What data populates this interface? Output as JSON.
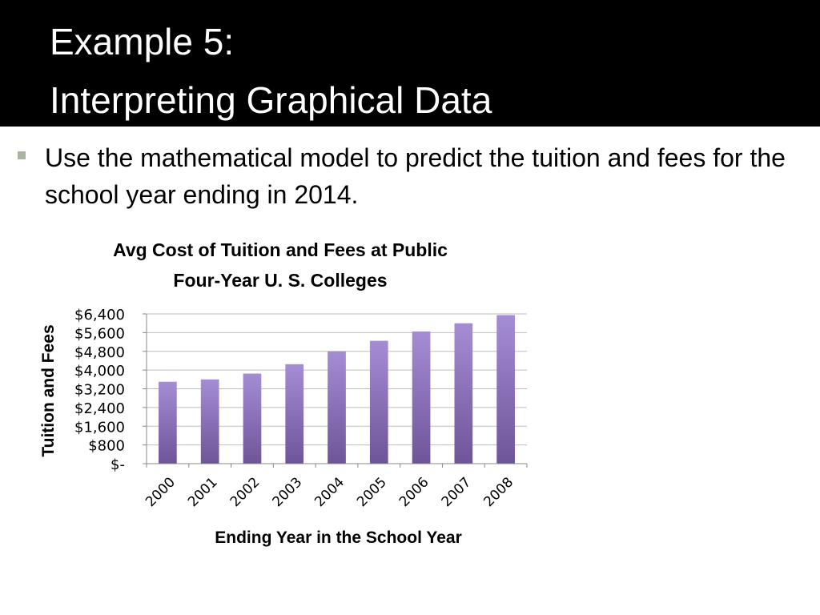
{
  "slide": {
    "title_line1": "Example 5:",
    "title_line2": "Interpreting Graphical Data",
    "bullet": "Use the mathematical model to predict the tuition and fees for the school year ending in 2014."
  },
  "chart_data": {
    "type": "bar",
    "title_line1": "Avg Cost of Tuition and Fees at Public",
    "title_line2": "Four-Year U. S. Colleges",
    "xlabel": "Ending Year in the School Year",
    "ylabel": "Tuition and Fees",
    "categories": [
      "2000",
      "2001",
      "2002",
      "2003",
      "2004",
      "2005",
      "2006",
      "2007",
      "2008"
    ],
    "values": [
      3500,
      3600,
      3850,
      4250,
      4800,
      5250,
      5650,
      6000,
      6350
    ],
    "ylim": [
      0,
      6400
    ],
    "y_ticks": [
      0,
      800,
      1600,
      2400,
      3200,
      4000,
      4800,
      5600,
      6400
    ],
    "y_tick_labels": [
      "$-",
      "$800",
      "$1,600",
      "$2,400",
      "$3,200",
      "$4,000",
      "$4,800",
      "$5,600",
      "$6,400"
    ],
    "grid": true,
    "bar_color_top": "#a58dd4",
    "bar_color_bottom": "#6e5499"
  }
}
